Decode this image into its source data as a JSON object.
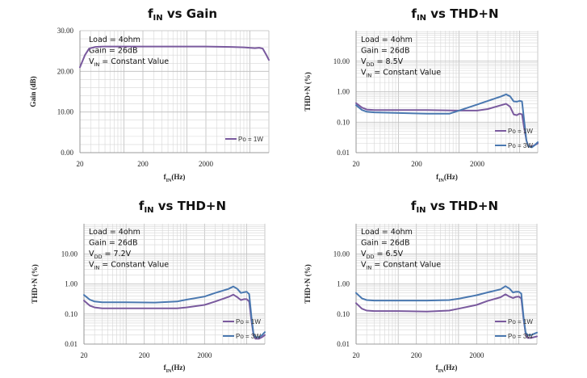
{
  "colors": {
    "po1w": "#7a5a9e",
    "po3w": "#4a78b0"
  },
  "chart_data": [
    {
      "id": "gain",
      "type": "line",
      "title": {
        "main": "f",
        "sub": "IN",
        "rest": " vs Gain"
      },
      "xlabel": {
        "main": "f",
        "sub": "IN",
        "rest": "(Hz)"
      },
      "ylabel": "Gain (dB)",
      "xscale": "log",
      "yscale": "linear",
      "xlim": [
        20,
        20000
      ],
      "ylim": [
        0,
        30
      ],
      "xticks": [
        20,
        200,
        2000
      ],
      "xtick_labels": [
        "20",
        "200",
        "2000"
      ],
      "yticks": [
        0,
        10,
        20,
        30
      ],
      "ytick_labels": [
        "0.00",
        "10.00",
        "20.00",
        "30.00"
      ],
      "grid": true,
      "annotations": [
        {
          "main": "Load = 4ohm"
        },
        {
          "main": "Gain = 26dB"
        },
        {
          "main": "V",
          "sub": "IN",
          "rest": " = Constant Value"
        }
      ],
      "legend_position": "bottom-right",
      "series": [
        {
          "name": "Po = 1W",
          "color_key": "po1w",
          "x": [
            20,
            24,
            28,
            35,
            50,
            100,
            200,
            500,
            1000,
            2000,
            5000,
            8000,
            12000,
            14000,
            16000,
            18000,
            20000
          ],
          "y": [
            21.0,
            24.0,
            25.6,
            26.0,
            26.1,
            26.1,
            26.1,
            26.1,
            26.1,
            26.1,
            26.0,
            25.9,
            25.7,
            25.8,
            25.6,
            24.2,
            22.8
          ]
        }
      ]
    },
    {
      "id": "thd-8v5",
      "type": "line",
      "title": {
        "main": "f",
        "sub": "IN",
        "rest": " vs THD+N"
      },
      "xlabel": {
        "main": "f",
        "sub": "IN",
        "rest": "(Hz)"
      },
      "ylabel": "THD+N (%)",
      "xscale": "log",
      "yscale": "log",
      "xlim": [
        20,
        20000
      ],
      "ylim": [
        0.01,
        100
      ],
      "xticks": [
        20,
        200,
        2000
      ],
      "xtick_labels": [
        "20",
        "200",
        "2000"
      ],
      "yticks": [
        0.01,
        0.1,
        1,
        10
      ],
      "ytick_labels": [
        "0.01",
        "0.10",
        "1.00",
        "10.00"
      ],
      "grid": true,
      "annotations": [
        {
          "main": "Load = 4ohm"
        },
        {
          "main": "Gain = 26dB"
        },
        {
          "main": "V",
          "sub": "DD",
          "rest": " = 8.5V"
        },
        {
          "main": "V",
          "sub": "IN",
          "rest": " = Constant Value"
        }
      ],
      "legend_position": "bottom-right",
      "series": [
        {
          "name": "Po = 1W",
          "color_key": "po1w",
          "x": [
            20,
            25,
            30,
            40,
            100,
            300,
            1000,
            2000,
            3000,
            5000,
            6000,
            7000,
            8000,
            9000,
            10000,
            11000,
            12000,
            13000,
            14000,
            16000,
            18000,
            20000
          ],
          "y": [
            0.42,
            0.3,
            0.26,
            0.25,
            0.25,
            0.25,
            0.24,
            0.24,
            0.27,
            0.36,
            0.4,
            0.32,
            0.18,
            0.17,
            0.19,
            0.18,
            0.06,
            0.025,
            0.016,
            0.016,
            0.018,
            0.02
          ],
          "legend_label": "Po = 1W"
        },
        {
          "name": "Po = 3W",
          "color_key": "po3w",
          "x": [
            20,
            25,
            30,
            40,
            100,
            300,
            700,
            1000,
            2000,
            3000,
            5000,
            6000,
            7000,
            8000,
            9000,
            10000,
            11000,
            12000,
            13000,
            14000,
            16000,
            18000,
            20000
          ],
          "y": [
            0.36,
            0.25,
            0.22,
            0.21,
            0.2,
            0.19,
            0.19,
            0.24,
            0.38,
            0.5,
            0.7,
            0.82,
            0.7,
            0.48,
            0.47,
            0.5,
            0.48,
            0.1,
            0.025,
            0.016,
            0.015,
            0.018,
            0.022
          ],
          "legend_label": "Po = 3W"
        }
      ]
    },
    {
      "id": "thd-7v2",
      "type": "line",
      "title": {
        "main": "f",
        "sub": "IN",
        "rest": " vs THD+N"
      },
      "xlabel": {
        "main": "f",
        "sub": "IN",
        "rest": "(Hz)"
      },
      "ylabel": "THD+N (%)",
      "xscale": "log",
      "yscale": "log",
      "xlim": [
        20,
        20000
      ],
      "ylim": [
        0.01,
        100
      ],
      "xticks": [
        20,
        200,
        2000
      ],
      "xtick_labels": [
        "20",
        "200",
        "2000"
      ],
      "yticks": [
        0.01,
        0.1,
        1,
        10
      ],
      "ytick_labels": [
        "0.01",
        "0.10",
        "1.00",
        "10.00"
      ],
      "grid": true,
      "annotations": [
        {
          "main": "Load = 4ohm"
        },
        {
          "main": "Gain = 26dB"
        },
        {
          "main": "V",
          "sub": "DD",
          "rest": " = 7.2V"
        },
        {
          "main": "V",
          "sub": "IN",
          "rest": " = Constant Value"
        }
      ],
      "legend_position": "bottom-right",
      "series": [
        {
          "name": "Po = 1W",
          "color_key": "po1w",
          "x": [
            20,
            25,
            30,
            40,
            100,
            300,
            700,
            1000,
            2000,
            3000,
            5000,
            6000,
            7000,
            8000,
            9000,
            10000,
            11000,
            12000,
            13000,
            14000,
            16000,
            18000,
            20000
          ],
          "y": [
            0.28,
            0.19,
            0.165,
            0.155,
            0.155,
            0.155,
            0.155,
            0.165,
            0.2,
            0.26,
            0.37,
            0.44,
            0.36,
            0.29,
            0.31,
            0.31,
            0.26,
            0.06,
            0.02,
            0.015,
            0.015,
            0.017,
            0.02
          ],
          "legend_label": "Po = 1W"
        },
        {
          "name": "Po = 3W",
          "color_key": "po3w",
          "x": [
            20,
            25,
            30,
            40,
            100,
            300,
            700,
            1000,
            2000,
            3000,
            5000,
            6000,
            7000,
            8000,
            9000,
            10000,
            11000,
            12000,
            13000,
            14000,
            16000,
            18000,
            20000
          ],
          "y": [
            0.43,
            0.3,
            0.26,
            0.245,
            0.245,
            0.24,
            0.26,
            0.3,
            0.38,
            0.5,
            0.68,
            0.82,
            0.68,
            0.5,
            0.53,
            0.55,
            0.46,
            0.08,
            0.022,
            0.017,
            0.017,
            0.02,
            0.025
          ],
          "legend_label": "Po = 3W"
        }
      ]
    },
    {
      "id": "thd-6v5",
      "type": "line",
      "title": {
        "main": "f",
        "sub": "IN",
        "rest": " vs THD+N"
      },
      "xlabel": {
        "main": "f",
        "sub": "IN",
        "rest": "(Hz)"
      },
      "ylabel": "THD+N (%)",
      "xscale": "log",
      "yscale": "log",
      "xlim": [
        20,
        20000
      ],
      "ylim": [
        0.01,
        100
      ],
      "xticks": [
        20,
        200,
        2000
      ],
      "xtick_labels": [
        "20",
        "200",
        "2000"
      ],
      "yticks": [
        0.01,
        0.1,
        1,
        10
      ],
      "ytick_labels": [
        "0.01",
        "0.10",
        "1.00",
        "10.00"
      ],
      "grid": true,
      "annotations": [
        {
          "main": "Load = 4ohm"
        },
        {
          "main": "Gain = 26dB"
        },
        {
          "main": "V",
          "sub": "DD",
          "rest": " = 6.5V"
        },
        {
          "main": "V",
          "sub": "IN",
          "rest": " = Constant Value"
        }
      ],
      "legend_position": "bottom-right",
      "series": [
        {
          "name": "Po = 1W",
          "color_key": "po1w",
          "x": [
            20,
            25,
            30,
            40,
            100,
            300,
            700,
            1000,
            2000,
            3000,
            5000,
            6000,
            7000,
            8000,
            9000,
            10000,
            11000,
            12000,
            13000,
            14000,
            16000,
            18000,
            20000
          ],
          "y": [
            0.23,
            0.15,
            0.13,
            0.125,
            0.125,
            0.12,
            0.13,
            0.15,
            0.2,
            0.27,
            0.36,
            0.45,
            0.38,
            0.34,
            0.37,
            0.38,
            0.33,
            0.07,
            0.022,
            0.016,
            0.016,
            0.017,
            0.018
          ],
          "legend_label": "Po = 1W"
        },
        {
          "name": "Po = 3W",
          "color_key": "po3w",
          "x": [
            20,
            25,
            30,
            40,
            100,
            300,
            700,
            1000,
            2000,
            3000,
            5000,
            6000,
            7000,
            8000,
            9000,
            10000,
            11000,
            12000,
            13000,
            14000,
            16000,
            18000,
            20000
          ],
          "y": [
            0.5,
            0.33,
            0.29,
            0.28,
            0.28,
            0.28,
            0.29,
            0.32,
            0.42,
            0.52,
            0.66,
            0.84,
            0.7,
            0.52,
            0.55,
            0.55,
            0.48,
            0.08,
            0.024,
            0.02,
            0.02,
            0.022,
            0.024
          ],
          "legend_label": "Po = 3W"
        }
      ]
    }
  ]
}
